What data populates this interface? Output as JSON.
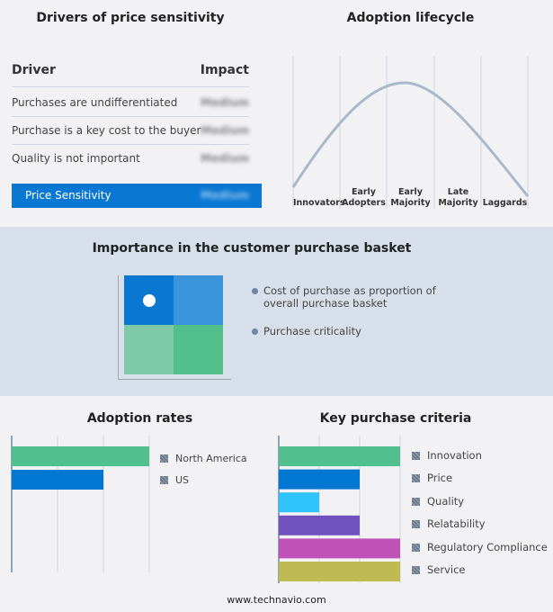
{
  "drivers": {
    "title": "Drivers of price sensitivity",
    "col_driver": "Driver",
    "col_impact": "Impact",
    "rows": [
      {
        "driver": "Purchases are undifferentiated",
        "impact": "Medium"
      },
      {
        "driver": "Purchase is a key cost to the buyer",
        "impact": "Medium"
      },
      {
        "driver": "Quality is not important",
        "impact": "Medium"
      }
    ],
    "summary": {
      "label": "Price Sensitivity",
      "impact": "Medium"
    }
  },
  "lifecycle": {
    "title": "Adoption lifecycle",
    "stages": [
      "Innovators",
      "Early Adopters",
      "Early Majority",
      "Late Majority",
      "Laggards"
    ]
  },
  "basket": {
    "title": "Importance in the customer purchase basket",
    "legend": [
      "Cost of purchase as proportion of overall purchase basket",
      "Purchase criticality"
    ]
  },
  "chart_data": [
    {
      "type": "bar",
      "orientation": "horizontal",
      "title": "Adoption rates",
      "categories": [
        "North America",
        "US"
      ],
      "values": [
        3,
        2
      ],
      "xlim": [
        0,
        3
      ],
      "colors": [
        "#52bf8f",
        "#0077d0"
      ],
      "grid": true
    },
    {
      "type": "bar",
      "orientation": "horizontal",
      "title": "Key purchase criteria",
      "categories": [
        "Innovation",
        "Price",
        "Quality",
        "Relatability",
        "Regulatory Compliance",
        "Service"
      ],
      "values": [
        3,
        2,
        1,
        2,
        3,
        3
      ],
      "xlim": [
        0,
        3
      ],
      "colors": [
        "#52bf8f",
        "#0077d0",
        "#2ec4fb",
        "#7052bf",
        "#be52b7",
        "#bfba52"
      ],
      "grid": true
    }
  ],
  "footer": "www.technavio.com"
}
